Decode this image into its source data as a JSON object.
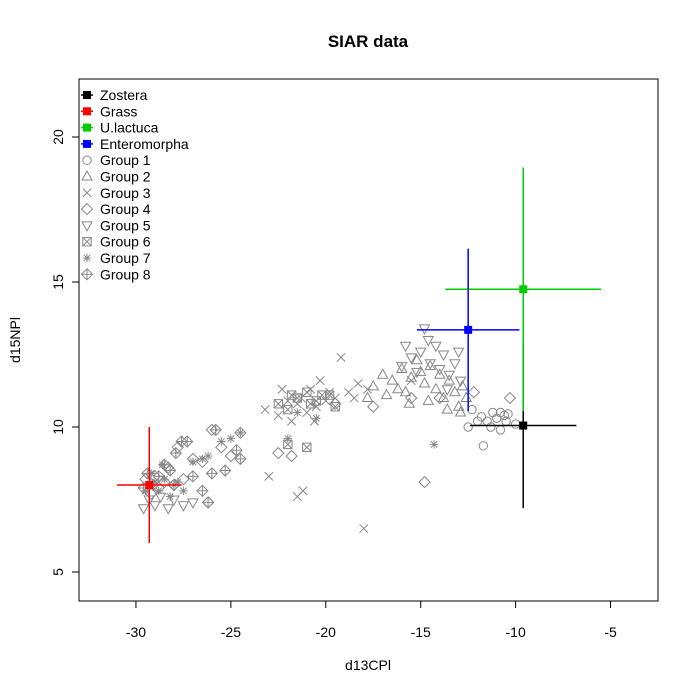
{
  "chart_data": {
    "type": "scatter",
    "title": "SIAR data",
    "xlabel": "d13CPl",
    "ylabel": "d15NPl",
    "xlim": [
      -33,
      -2.5
    ],
    "ylim": [
      4,
      22
    ],
    "xticks": [
      -30,
      -25,
      -20,
      -15,
      -10,
      -5
    ],
    "yticks": [
      5,
      10,
      15,
      20
    ],
    "grid": false,
    "legend_position": "top-left",
    "sources": [
      {
        "name": "Zostera",
        "color": "#000000",
        "x": -9.6,
        "y": 10.05,
        "x_err": 2.8,
        "y_err_low": 2.85,
        "y_err_high": 2.85
      },
      {
        "name": "Grass",
        "color": "#ff0000",
        "x": -29.3,
        "y": 8.0,
        "x_err": 1.7,
        "y_err_low": 2.0,
        "y_err_high": 2.0
      },
      {
        "name": "U.lactuca",
        "color": "#00cc00",
        "x": -9.6,
        "y": 14.75,
        "x_err": 4.1,
        "y_err_low": 4.2,
        "y_err_high": 4.2
      },
      {
        "name": "Enteromorpha",
        "color": "#0000ff",
        "x": -12.5,
        "y": 13.35,
        "x_err": 2.7,
        "y_err_low": 2.8,
        "y_err_high": 2.8
      }
    ],
    "groups": [
      {
        "name": "Group 1",
        "marker": "circle",
        "color": "#888888",
        "points": [
          [
            -12.3,
            10.6
          ],
          [
            -11.8,
            10.35
          ],
          [
            -11.5,
            10.2
          ],
          [
            -11.2,
            10.5
          ],
          [
            -11.0,
            10.3
          ],
          [
            -10.8,
            10.5
          ],
          [
            -10.6,
            10.4
          ],
          [
            -10.4,
            10.45
          ],
          [
            -11.7,
            9.35
          ],
          [
            -10.8,
            9.9
          ],
          [
            -10.0,
            10.1
          ],
          [
            -12.0,
            10.2
          ],
          [
            -11.3,
            10.0
          ],
          [
            -10.5,
            10.2
          ],
          [
            -12.5,
            10.0
          ]
        ]
      },
      {
        "name": "Group 2",
        "marker": "triangle-up",
        "color": "#888888",
        "points": [
          [
            -17.5,
            11.4
          ],
          [
            -17.0,
            11.8
          ],
          [
            -16.5,
            11.6
          ],
          [
            -16.0,
            12.0
          ],
          [
            -15.8,
            11.2
          ],
          [
            -15.5,
            11.7
          ],
          [
            -15.2,
            12.3
          ],
          [
            -15.0,
            11.9
          ],
          [
            -14.8,
            11.5
          ],
          [
            -14.5,
            12.1
          ],
          [
            -14.2,
            11.3
          ],
          [
            -14.0,
            11.8
          ],
          [
            -13.8,
            11.0
          ],
          [
            -13.5,
            11.6
          ],
          [
            -13.2,
            11.2
          ],
          [
            -13.0,
            10.7
          ],
          [
            -12.8,
            11.4
          ],
          [
            -12.6,
            11.0
          ],
          [
            -17.8,
            11.0
          ],
          [
            -16.8,
            11.1
          ],
          [
            -16.2,
            11.3
          ],
          [
            -15.6,
            10.8
          ],
          [
            -14.6,
            10.9
          ],
          [
            -13.6,
            10.6
          ],
          [
            -12.9,
            10.5
          ]
        ]
      },
      {
        "name": "Group 3",
        "marker": "cross",
        "color": "#888888",
        "points": [
          [
            -23.0,
            8.3
          ],
          [
            -22.5,
            10.4
          ],
          [
            -22.0,
            10.9
          ],
          [
            -21.8,
            10.2
          ],
          [
            -21.5,
            10.8
          ],
          [
            -21.3,
            11.0
          ],
          [
            -21.0,
            10.5
          ],
          [
            -20.8,
            11.3
          ],
          [
            -20.5,
            10.7
          ],
          [
            -20.3,
            11.6
          ],
          [
            -20.0,
            10.9
          ],
          [
            -19.5,
            11.0
          ],
          [
            -19.2,
            12.4
          ],
          [
            -18.8,
            11.2
          ],
          [
            -18.5,
            11.0
          ],
          [
            -18.3,
            11.5
          ],
          [
            -17.8,
            11.3
          ],
          [
            -21.5,
            7.6
          ],
          [
            -21.2,
            7.8
          ],
          [
            -18.0,
            6.5
          ],
          [
            -15.5,
            11.6
          ],
          [
            -22.3,
            11.3
          ],
          [
            -20.6,
            10.2
          ],
          [
            -19.8,
            11.2
          ],
          [
            -23.2,
            10.6
          ]
        ]
      },
      {
        "name": "Group 4",
        "marker": "diamond",
        "color": "#888888",
        "points": [
          [
            -29.5,
            8.2
          ],
          [
            -29.2,
            7.7
          ],
          [
            -29.0,
            8.3
          ],
          [
            -28.8,
            7.9
          ],
          [
            -28.5,
            8.1
          ],
          [
            -28.3,
            8.6
          ],
          [
            -28.0,
            8.0
          ],
          [
            -27.8,
            9.3
          ],
          [
            -27.5,
            8.2
          ],
          [
            -27.0,
            8.9
          ],
          [
            -26.5,
            8.8
          ],
          [
            -26.2,
            7.4
          ],
          [
            -26.0,
            9.9
          ],
          [
            -25.5,
            9.3
          ],
          [
            -25.0,
            9.0
          ],
          [
            -24.5,
            9.8
          ],
          [
            -22.5,
            9.1
          ],
          [
            -21.8,
            9.0
          ],
          [
            -19.5,
            10.8
          ],
          [
            -17.5,
            10.7
          ],
          [
            -15.5,
            11.0
          ],
          [
            -14.8,
            8.1
          ],
          [
            -14.0,
            11.0
          ],
          [
            -12.2,
            11.2
          ],
          [
            -10.3,
            11.0
          ]
        ]
      },
      {
        "name": "Group 5",
        "marker": "triangle-down",
        "color": "#888888",
        "points": [
          [
            -29.6,
            7.2
          ],
          [
            -29.3,
            7.5
          ],
          [
            -29.0,
            7.3
          ],
          [
            -28.7,
            7.6
          ],
          [
            -28.3,
            7.2
          ],
          [
            -28.0,
            7.5
          ],
          [
            -27.5,
            7.3
          ],
          [
            -27.0,
            7.4
          ],
          [
            -16.0,
            12.1
          ],
          [
            -15.5,
            12.4
          ],
          [
            -15.2,
            11.9
          ],
          [
            -15.0,
            12.6
          ],
          [
            -14.8,
            13.4
          ],
          [
            -14.5,
            12.2
          ],
          [
            -14.2,
            12.8
          ],
          [
            -14.0,
            12.0
          ],
          [
            -13.8,
            12.5
          ],
          [
            -13.5,
            11.8
          ],
          [
            -13.2,
            12.2
          ],
          [
            -13.0,
            12.6
          ],
          [
            -14.6,
            13.0
          ],
          [
            -15.8,
            12.8
          ],
          [
            -13.6,
            11.3
          ],
          [
            -12.9,
            11.6
          ]
        ]
      },
      {
        "name": "Group 6",
        "marker": "box-x",
        "color": "#888888",
        "points": [
          [
            -22.5,
            10.8
          ],
          [
            -22.0,
            10.6
          ],
          [
            -21.5,
            11.0
          ],
          [
            -21.0,
            11.2
          ],
          [
            -20.5,
            10.9
          ],
          [
            -20.2,
            11.1
          ],
          [
            -19.8,
            11.1
          ],
          [
            -19.5,
            10.7
          ],
          [
            -22.0,
            9.4
          ],
          [
            -21.0,
            9.3
          ],
          [
            -20.8,
            10.8
          ],
          [
            -21.8,
            11.1
          ]
        ]
      },
      {
        "name": "Group 7",
        "marker": "asterisk",
        "color": "#888888",
        "points": [
          [
            -29.5,
            7.8
          ],
          [
            -29.2,
            8.4
          ],
          [
            -29.0,
            8.1
          ],
          [
            -28.8,
            7.8
          ],
          [
            -28.5,
            8.2
          ],
          [
            -28.2,
            7.6
          ],
          [
            -28.0,
            8.0
          ],
          [
            -27.8,
            8.1
          ],
          [
            -27.5,
            7.8
          ],
          [
            -27.0,
            8.8
          ],
          [
            -26.5,
            8.9
          ],
          [
            -26.2,
            9.0
          ],
          [
            -25.5,
            9.5
          ],
          [
            -25.0,
            9.6
          ],
          [
            -24.5,
            9.8
          ],
          [
            -22.0,
            9.6
          ],
          [
            -21.5,
            10.5
          ],
          [
            -14.3,
            9.4
          ],
          [
            -20.5,
            10.3
          ],
          [
            -28.6,
            8.7
          ]
        ]
      },
      {
        "name": "Group 8",
        "marker": "diamond-plus",
        "color": "#888888",
        "points": [
          [
            -29.4,
            8.4
          ],
          [
            -29.1,
            8.0
          ],
          [
            -28.8,
            8.3
          ],
          [
            -28.5,
            8.7
          ],
          [
            -28.2,
            8.5
          ],
          [
            -27.9,
            9.1
          ],
          [
            -27.6,
            9.5
          ],
          [
            -27.3,
            9.5
          ],
          [
            -27.0,
            8.3
          ],
          [
            -26.5,
            7.8
          ],
          [
            -26.2,
            7.4
          ],
          [
            -26.0,
            8.4
          ],
          [
            -25.8,
            9.9
          ],
          [
            -25.3,
            8.5
          ],
          [
            -24.7,
            9.2
          ],
          [
            -24.5,
            8.9
          ],
          [
            -29.6,
            7.9
          ],
          [
            -28.0,
            8.0
          ]
        ]
      }
    ]
  }
}
